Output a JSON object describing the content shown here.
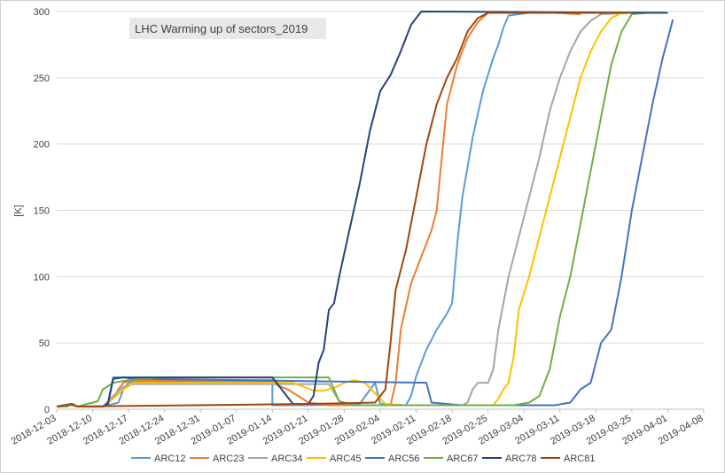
{
  "chart_data": {
    "type": "line",
    "title": "LHC Warming up of sectors_2019",
    "ylabel": "[K]",
    "xlabel": "",
    "ylim": [
      0,
      300
    ],
    "yticks": [
      0,
      50,
      100,
      150,
      200,
      250,
      300
    ],
    "xlim": [
      "2018-12-03",
      "2019-04-08"
    ],
    "xticks": [
      "2018-12-03",
      "2018-12-10",
      "2018-12-17",
      "2018-12-24",
      "2018-12-31",
      "2019-01-07",
      "2019-01-14",
      "2019-01-21",
      "2019-01-28",
      "2019-02-04",
      "2019-02-11",
      "2019-02-18",
      "2019-02-25",
      "2019-03-04",
      "2019-03-11",
      "2019-03-18",
      "2019-03-25",
      "2019-04-01",
      "2019-04-08"
    ],
    "grid": "horizontal",
    "legend_position": "bottom",
    "series": [
      {
        "name": "ARC12",
        "color": "#5B9BD5",
        "points": [
          [
            "2018-12-03",
            2
          ],
          [
            "2018-12-05",
            2
          ],
          [
            "2018-12-06",
            4
          ],
          [
            "2018-12-07",
            2
          ],
          [
            "2018-12-12",
            2
          ],
          [
            "2018-12-15",
            5
          ],
          [
            "2018-12-16",
            15
          ],
          [
            "2018-12-17",
            20
          ],
          [
            "2018-12-20",
            21
          ],
          [
            "2019-01-14",
            21
          ],
          [
            "2019-01-14",
            3
          ],
          [
            "2019-01-21",
            3
          ],
          [
            "2019-01-31",
            4
          ],
          [
            "2019-02-03",
            20
          ],
          [
            "2019-02-04",
            4
          ],
          [
            "2019-02-09",
            3
          ],
          [
            "2019-02-10",
            10
          ],
          [
            "2019-02-11",
            25
          ],
          [
            "2019-02-13",
            45
          ],
          [
            "2019-02-15",
            60
          ],
          [
            "2019-02-17",
            72
          ],
          [
            "2019-02-18",
            80
          ],
          [
            "2019-02-19",
            125
          ],
          [
            "2019-02-20",
            160
          ],
          [
            "2019-02-22",
            205
          ],
          [
            "2019-02-24",
            240
          ],
          [
            "2019-02-26",
            265
          ],
          [
            "2019-02-27",
            275
          ],
          [
            "2019-02-28",
            288
          ],
          [
            "2019-03-01",
            297
          ],
          [
            "2019-03-05",
            299
          ],
          [
            "2019-04-01",
            299
          ]
        ]
      },
      {
        "name": "ARC23",
        "color": "#ED7D31",
        "points": [
          [
            "2018-12-03",
            2
          ],
          [
            "2018-12-06",
            4
          ],
          [
            "2018-12-07",
            2
          ],
          [
            "2018-12-12",
            2
          ],
          [
            "2018-12-14",
            8
          ],
          [
            "2018-12-15",
            15
          ],
          [
            "2018-12-16",
            20
          ],
          [
            "2018-12-17",
            21
          ],
          [
            "2018-12-20",
            22
          ],
          [
            "2019-01-14",
            22
          ],
          [
            "2019-01-15",
            18
          ],
          [
            "2019-01-17",
            15
          ],
          [
            "2019-01-19",
            10
          ],
          [
            "2019-01-21",
            5
          ],
          [
            "2019-01-25",
            3
          ],
          [
            "2019-02-06",
            3
          ],
          [
            "2019-02-07",
            20
          ],
          [
            "2019-02-08",
            60
          ],
          [
            "2019-02-10",
            95
          ],
          [
            "2019-02-12",
            115
          ],
          [
            "2019-02-14",
            135
          ],
          [
            "2019-02-15",
            150
          ],
          [
            "2019-02-16",
            190
          ],
          [
            "2019-02-17",
            230
          ],
          [
            "2019-02-19",
            260
          ],
          [
            "2019-02-21",
            280
          ],
          [
            "2019-02-23",
            292
          ],
          [
            "2019-02-25",
            299
          ],
          [
            "2019-03-10",
            299
          ],
          [
            "2019-03-15",
            298
          ]
        ]
      },
      {
        "name": "ARC34",
        "color": "#A5A5A5",
        "points": [
          [
            "2018-12-03",
            2
          ],
          [
            "2018-12-06",
            4
          ],
          [
            "2018-12-07",
            2
          ],
          [
            "2018-12-12",
            2
          ],
          [
            "2018-12-14",
            10
          ],
          [
            "2018-12-16",
            17
          ],
          [
            "2018-12-18",
            19
          ],
          [
            "2018-12-20",
            19
          ],
          [
            "2019-01-25",
            19
          ],
          [
            "2019-01-27",
            6
          ],
          [
            "2019-01-30",
            3
          ],
          [
            "2019-02-20",
            3
          ],
          [
            "2019-02-21",
            5
          ],
          [
            "2019-02-22",
            15
          ],
          [
            "2019-02-23",
            20
          ],
          [
            "2019-02-25",
            20
          ],
          [
            "2019-02-26",
            30
          ],
          [
            "2019-02-27",
            60
          ],
          [
            "2019-02-28",
            80
          ],
          [
            "2019-03-01",
            100
          ],
          [
            "2019-03-03",
            130
          ],
          [
            "2019-03-05",
            160
          ],
          [
            "2019-03-07",
            190
          ],
          [
            "2019-03-09",
            225
          ],
          [
            "2019-03-11",
            250
          ],
          [
            "2019-03-13",
            270
          ],
          [
            "2019-03-15",
            285
          ],
          [
            "2019-03-17",
            293
          ],
          [
            "2019-03-19",
            298
          ],
          [
            "2019-03-25",
            299
          ],
          [
            "2019-04-01",
            299
          ]
        ]
      },
      {
        "name": "ARC45",
        "color": "#FFC000",
        "points": [
          [
            "2018-12-03",
            2
          ],
          [
            "2018-12-06",
            4
          ],
          [
            "2018-12-07",
            2
          ],
          [
            "2018-12-12",
            2
          ],
          [
            "2018-12-14",
            8
          ],
          [
            "2018-12-16",
            15
          ],
          [
            "2018-12-18",
            20
          ],
          [
            "2018-12-20",
            20
          ],
          [
            "2019-01-14",
            20
          ],
          [
            "2019-01-18",
            20
          ],
          [
            "2019-01-20",
            17
          ],
          [
            "2019-01-22",
            14
          ],
          [
            "2019-01-24",
            14
          ],
          [
            "2019-01-26",
            16
          ],
          [
            "2019-01-28",
            20
          ],
          [
            "2019-01-30",
            22
          ],
          [
            "2019-02-01",
            20
          ],
          [
            "2019-02-03",
            12
          ],
          [
            "2019-02-05",
            4
          ],
          [
            "2019-02-08",
            3
          ],
          [
            "2019-02-26",
            3
          ],
          [
            "2019-02-27",
            8
          ],
          [
            "2019-02-28",
            15
          ],
          [
            "2019-03-01",
            20
          ],
          [
            "2019-03-02",
            40
          ],
          [
            "2019-03-03",
            75
          ],
          [
            "2019-03-05",
            100
          ],
          [
            "2019-03-07",
            130
          ],
          [
            "2019-03-09",
            160
          ],
          [
            "2019-03-11",
            190
          ],
          [
            "2019-03-13",
            220
          ],
          [
            "2019-03-15",
            250
          ],
          [
            "2019-03-17",
            270
          ],
          [
            "2019-03-19",
            285
          ],
          [
            "2019-03-21",
            295
          ],
          [
            "2019-03-23",
            299
          ],
          [
            "2019-04-01",
            299
          ]
        ]
      },
      {
        "name": "ARC56",
        "color": "#4472C4",
        "points": [
          [
            "2018-12-03",
            2
          ],
          [
            "2018-12-06",
            4
          ],
          [
            "2018-12-07",
            2
          ],
          [
            "2018-12-12",
            2
          ],
          [
            "2018-12-13",
            5
          ],
          [
            "2018-12-14",
            24
          ],
          [
            "2018-12-16",
            24
          ],
          [
            "2018-12-18",
            23
          ],
          [
            "2019-02-13",
            20
          ],
          [
            "2019-02-14",
            5
          ],
          [
            "2019-02-17",
            4
          ],
          [
            "2019-02-20",
            3
          ],
          [
            "2019-03-10",
            3
          ],
          [
            "2019-03-13",
            5
          ],
          [
            "2019-03-15",
            15
          ],
          [
            "2019-03-17",
            20
          ],
          [
            "2019-03-19",
            50
          ],
          [
            "2019-03-21",
            60
          ],
          [
            "2019-03-23",
            100
          ],
          [
            "2019-03-25",
            150
          ],
          [
            "2019-03-27",
            190
          ],
          [
            "2019-03-29",
            230
          ],
          [
            "2019-03-31",
            265
          ],
          [
            "2019-04-02",
            294
          ]
        ]
      },
      {
        "name": "ARC67",
        "color": "#70AD47",
        "points": [
          [
            "2018-12-03",
            2
          ],
          [
            "2018-12-06",
            3
          ],
          [
            "2018-12-07",
            2
          ],
          [
            "2018-12-09",
            4
          ],
          [
            "2018-12-11",
            6
          ],
          [
            "2018-12-12",
            15
          ],
          [
            "2018-12-14",
            20
          ],
          [
            "2018-12-17",
            22
          ],
          [
            "2018-12-24",
            24
          ],
          [
            "2019-01-14",
            24
          ],
          [
            "2019-01-25",
            24
          ],
          [
            "2019-01-27",
            6
          ],
          [
            "2019-01-30",
            3
          ],
          [
            "2019-03-02",
            3
          ],
          [
            "2019-03-05",
            5
          ],
          [
            "2019-03-07",
            10
          ],
          [
            "2019-03-09",
            30
          ],
          [
            "2019-03-11",
            70
          ],
          [
            "2019-03-13",
            100
          ],
          [
            "2019-03-15",
            140
          ],
          [
            "2019-03-17",
            180
          ],
          [
            "2019-03-19",
            220
          ],
          [
            "2019-03-21",
            260
          ],
          [
            "2019-03-23",
            285
          ],
          [
            "2019-03-25",
            298
          ],
          [
            "2019-03-28",
            299
          ],
          [
            "2019-04-01",
            299
          ]
        ]
      },
      {
        "name": "ARC78",
        "color": "#264478",
        "points": [
          [
            "2018-12-03",
            2
          ],
          [
            "2018-12-06",
            4
          ],
          [
            "2018-12-07",
            2
          ],
          [
            "2018-12-12",
            2
          ],
          [
            "2018-12-13",
            4
          ],
          [
            "2018-12-14",
            23
          ],
          [
            "2018-12-16",
            24
          ],
          [
            "2019-01-14",
            24
          ],
          [
            "2019-01-18",
            4
          ],
          [
            "2019-01-21",
            4
          ],
          [
            "2019-01-22",
            10
          ],
          [
            "2019-01-23",
            35
          ],
          [
            "2019-01-24",
            45
          ],
          [
            "2019-01-25",
            75
          ],
          [
            "2019-01-26",
            80
          ],
          [
            "2019-01-27",
            100
          ],
          [
            "2019-01-29",
            135
          ],
          [
            "2019-01-31",
            170
          ],
          [
            "2019-02-02",
            210
          ],
          [
            "2019-02-04",
            240
          ],
          [
            "2019-02-06",
            252
          ],
          [
            "2019-02-08",
            270
          ],
          [
            "2019-02-10",
            290
          ],
          [
            "2019-02-12",
            300
          ],
          [
            "2019-04-01",
            299
          ]
        ]
      },
      {
        "name": "ARC81",
        "color": "#9E480E",
        "points": [
          [
            "2018-12-03",
            2
          ],
          [
            "2018-12-06",
            4
          ],
          [
            "2018-12-07",
            2
          ],
          [
            "2019-01-21",
            4
          ],
          [
            "2019-02-03",
            5
          ],
          [
            "2019-02-05",
            15
          ],
          [
            "2019-02-06",
            50
          ],
          [
            "2019-02-07",
            90
          ],
          [
            "2019-02-09",
            120
          ],
          [
            "2019-02-11",
            160
          ],
          [
            "2019-02-13",
            200
          ],
          [
            "2019-02-15",
            230
          ],
          [
            "2019-02-17",
            250
          ],
          [
            "2019-02-19",
            265
          ],
          [
            "2019-02-21",
            285
          ],
          [
            "2019-02-23",
            295
          ],
          [
            "2019-02-25",
            299
          ],
          [
            "2019-03-25",
            299
          ]
        ]
      }
    ]
  }
}
